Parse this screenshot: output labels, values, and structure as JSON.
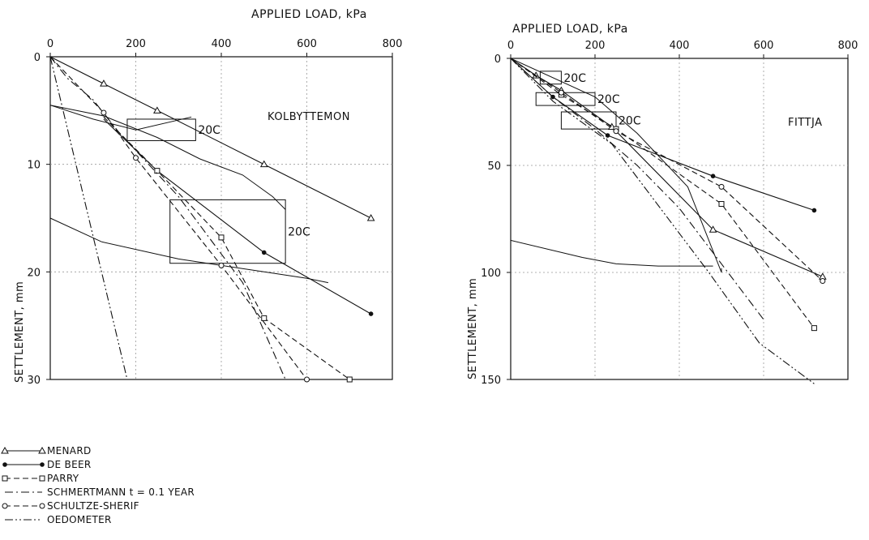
{
  "chart_data": [
    {
      "type": "line",
      "site_label": "KOLBYTTEMON",
      "xlabel": "APPLIED LOAD, kPa",
      "ylabel": "SETTLEMENT, mm",
      "xlim": [
        0,
        800
      ],
      "ylim": [
        0,
        30
      ],
      "y_inverted": true,
      "x_position": "top",
      "xticks": [
        0,
        200,
        400,
        600,
        800
      ],
      "yticks": [
        0,
        10,
        20,
        30
      ],
      "tick_labels_x": [
        "0",
        "200",
        "400",
        "600",
        "800"
      ],
      "tick_labels_y": [
        "0",
        "10",
        "20",
        "30"
      ],
      "annotations": [
        "20C",
        "20C"
      ],
      "series": [
        {
          "name": "MENARD",
          "x": [
            0,
            125,
            250,
            500,
            750
          ],
          "y": [
            0,
            2.5,
            5,
            10,
            15
          ]
        },
        {
          "name": "DE BEER",
          "x": [
            125,
            250,
            500,
            750
          ],
          "y": [
            5.8,
            10.6,
            18.2,
            23.9
          ]
        },
        {
          "name": "PARRY",
          "x": [
            125,
            250,
            400,
            500,
            700
          ],
          "y": [
            5.6,
            10.6,
            16.8,
            24.3,
            30
          ]
        },
        {
          "name": "SCHMERTMANN t = 0.1 YEAR",
          "x": [
            0,
            40,
            100,
            160,
            300,
            450,
            550
          ],
          "y": [
            0,
            2,
            4,
            7,
            13,
            21,
            30
          ]
        },
        {
          "name": "SCHULTZE-SHERIF",
          "x": [
            0,
            125,
            200,
            400,
            600
          ],
          "y": [
            0,
            5.2,
            9.4,
            19.4,
            30
          ]
        },
        {
          "name": "OEDOMETER",
          "x": [
            0,
            60,
            120,
            180
          ],
          "y": [
            0,
            10,
            20,
            30
          ]
        }
      ],
      "load_test": [
        {
          "x": [
            0,
            100,
            200,
            330
          ],
          "y": [
            4.5,
            5.8,
            6.8,
            5.6
          ]
        },
        {
          "x": [
            0,
            125,
            250,
            350,
            450,
            520,
            550
          ],
          "y": [
            4.5,
            5.5,
            7.5,
            9.5,
            11,
            13,
            14.2
          ]
        },
        {
          "x": [
            0,
            120,
            300,
            500,
            600,
            650
          ],
          "y": [
            15,
            17.2,
            18.8,
            20,
            20.6,
            21
          ]
        }
      ],
      "creep_boxes": [
        {
          "label": "20C",
          "x": [
            180,
            340
          ],
          "y": [
            5.8,
            7.8
          ]
        },
        {
          "label": "20C",
          "x": [
            280,
            550
          ],
          "y": [
            13.3,
            19.2
          ]
        }
      ]
    },
    {
      "type": "line",
      "site_label": "FITTJA",
      "xlabel": "APPLIED  LOAD, kPa",
      "ylabel": "SETTLEMENT, mm",
      "xlim": [
        0,
        800
      ],
      "ylim": [
        0,
        150
      ],
      "y_inverted": true,
      "x_position": "top",
      "xticks": [
        0,
        200,
        400,
        600,
        800
      ],
      "yticks": [
        0,
        50,
        100,
        150
      ],
      "tick_labels_x": [
        "0",
        "200",
        "400",
        "600",
        "800"
      ],
      "tick_labels_y": [
        "0",
        "50",
        "100",
        "150"
      ],
      "annotations": [
        "20C",
        "20C",
        "20C"
      ],
      "series": [
        {
          "name": "MENARD",
          "x": [
            0,
            60,
            120,
            240,
            480,
            740
          ],
          "y": [
            0,
            8,
            15,
            32,
            80,
            102
          ]
        },
        {
          "name": "DE BEER",
          "x": [
            0,
            100,
            230,
            480,
            720
          ],
          "y": [
            0,
            18,
            36,
            55,
            71
          ]
        },
        {
          "name": "PARRY",
          "x": [
            0,
            120,
            250,
            500,
            720
          ],
          "y": [
            0,
            17,
            33,
            68,
            126
          ]
        },
        {
          "name": "SCHMERTMANN t = 0.1 YEAR",
          "x": [
            0,
            100,
            200,
            300,
            400,
            600
          ],
          "y": [
            0,
            18,
            33,
            50,
            70,
            122
          ]
        },
        {
          "name": "SCHULTZE-SHERIF",
          "x": [
            0,
            120,
            250,
            500,
            740
          ],
          "y": [
            0,
            16,
            34,
            60,
            104
          ]
        },
        {
          "name": "OEDOMETER",
          "x": [
            0,
            100,
            240,
            470,
            590,
            720
          ],
          "y": [
            0,
            20,
            40,
            100,
            133,
            152
          ]
        }
      ],
      "load_test": [
        {
          "x": [
            0,
            200,
            300,
            420,
            500,
            500
          ],
          "y": [
            0,
            18,
            35,
            60,
            100,
            98
          ]
        },
        {
          "x": [
            0,
            170,
            250,
            350,
            480
          ],
          "y": [
            85,
            93,
            96,
            97,
            97
          ]
        }
      ],
      "creep_boxes": [
        {
          "label": "20C",
          "x": [
            70,
            120
          ],
          "y": [
            6,
            12
          ]
        },
        {
          "label": "20C",
          "x": [
            60,
            200
          ],
          "y": [
            16,
            22
          ]
        },
        {
          "label": "20C",
          "x": [
            120,
            250
          ],
          "y": [
            25,
            33
          ]
        }
      ]
    }
  ],
  "legend": {
    "title": "",
    "items": [
      "MENARD",
      "DE BEER",
      "PARRY",
      "SCHMERTMANN t = 0.1 YEAR",
      "SCHULTZE-SHERIF",
      "OEDOMETER"
    ]
  }
}
